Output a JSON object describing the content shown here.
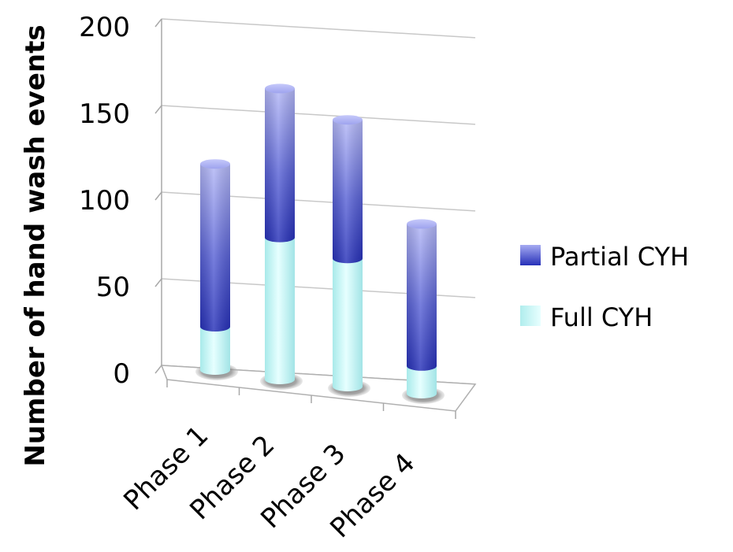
{
  "chart_data": {
    "type": "bar",
    "stacked": true,
    "style": "3d-cylinder",
    "categories": [
      "Phase 1",
      "Phase 2",
      "Phase 3",
      "Phase 4"
    ],
    "series": [
      {
        "name": "Full CYH",
        "values": [
          25,
          82,
          74,
          16
        ],
        "color": "#c4f4f4"
      },
      {
        "name": "Partial CYH",
        "values": [
          94,
          86,
          80,
          82
        ],
        "color": "#3a44c8"
      }
    ],
    "ylabel": "Number of hand wash events",
    "xlabel": "",
    "ylim": [
      0,
      200
    ],
    "yticks": [
      "0",
      "50",
      "100",
      "150",
      "200"
    ],
    "grid": true,
    "legend_position": "right",
    "legend_order": [
      "Partial CYH",
      "Full CYH"
    ]
  }
}
